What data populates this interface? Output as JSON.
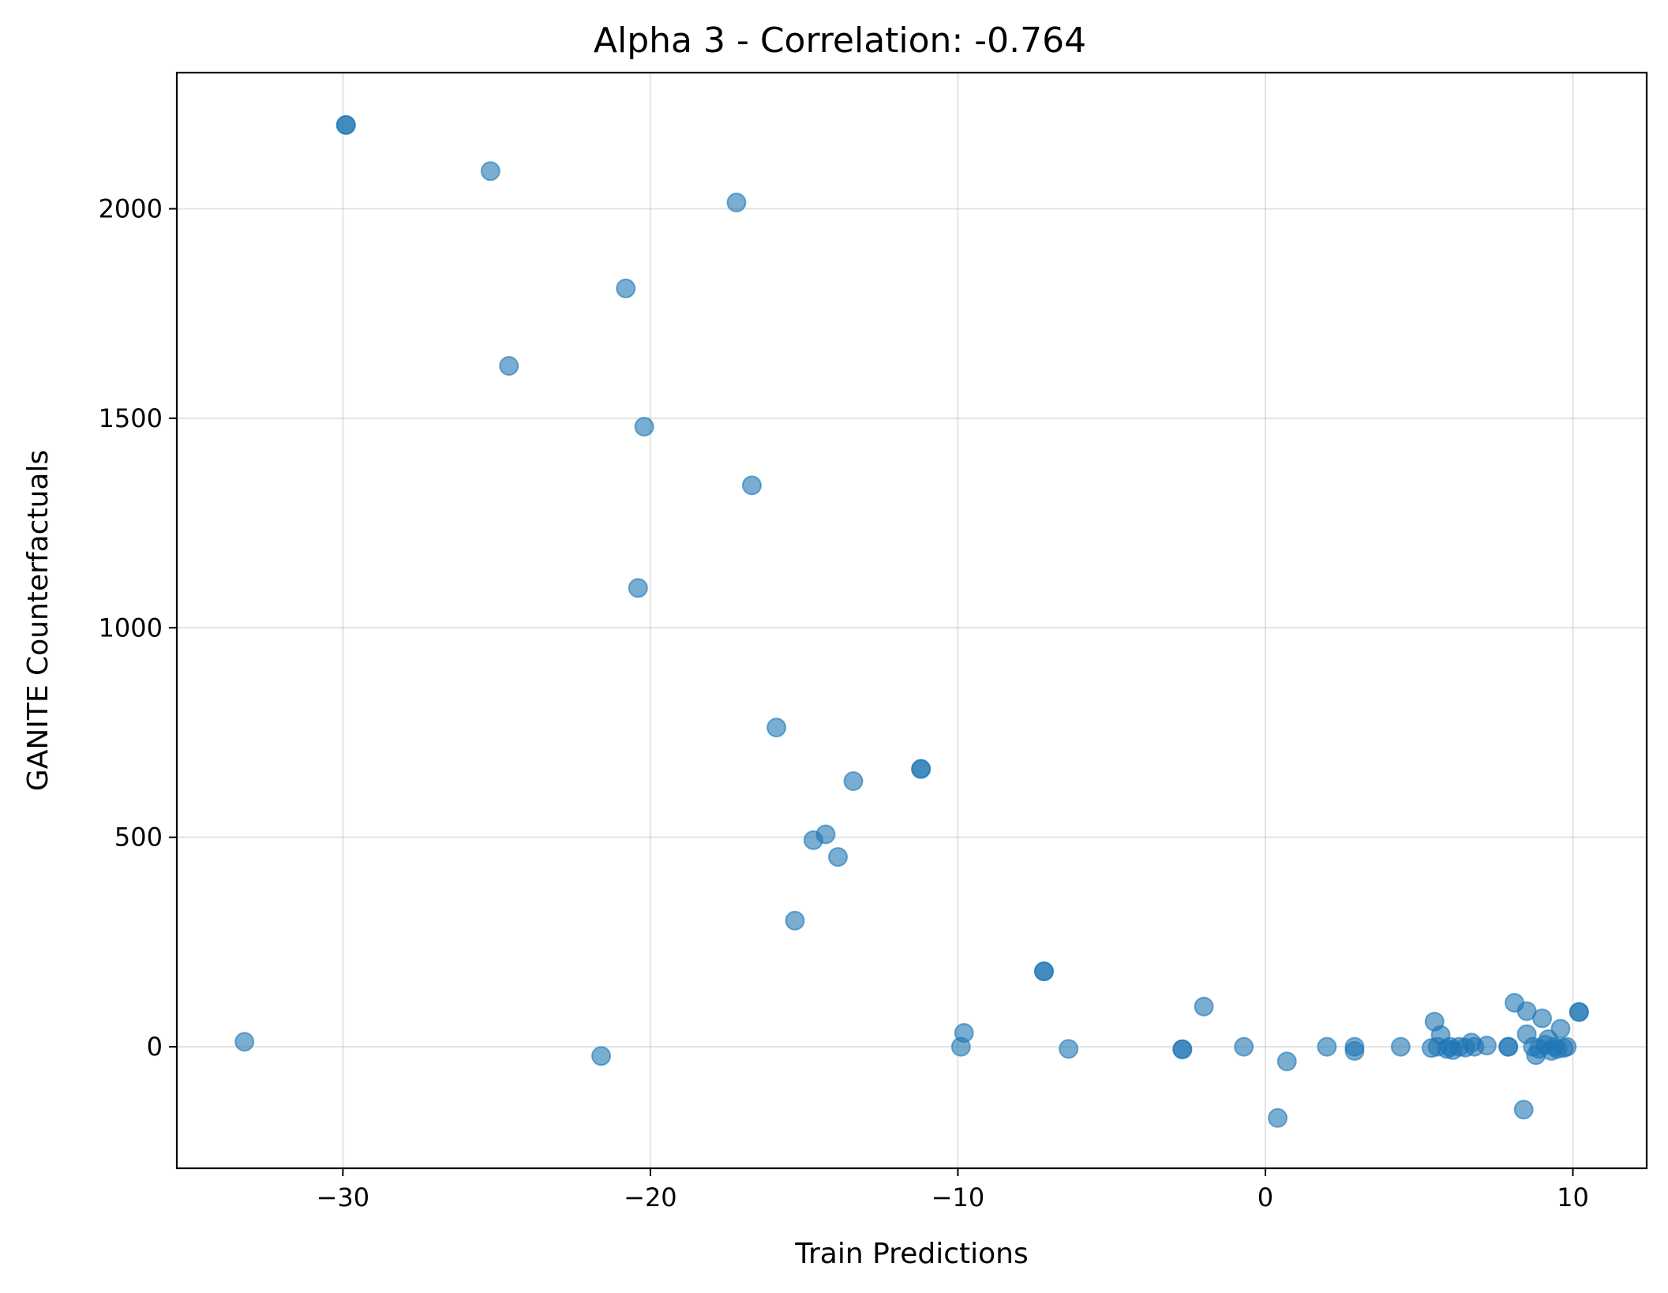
{
  "chart_data": {
    "type": "scatter",
    "title": "Alpha 3 - Correlation: -0.764",
    "xlabel": "Train Predictions",
    "ylabel": "GANITE Counterfactuals",
    "xlim": [
      -35.4,
      12.4
    ],
    "ylim": [
      -290,
      2325
    ],
    "xticks": [
      -30,
      -20,
      -10,
      0,
      10
    ],
    "xtick_labels": [
      "−30",
      "−20",
      "−10",
      "0",
      "10"
    ],
    "yticks": [
      0,
      500,
      1000,
      1500,
      2000
    ],
    "ytick_labels": [
      "0",
      "500",
      "1000",
      "1500",
      "2000"
    ],
    "grid": true,
    "marker_color": "#1f77b4",
    "points": [
      {
        "x": -29.9,
        "y": 2200
      },
      {
        "x": -29.9,
        "y": 2200
      },
      {
        "x": -25.2,
        "y": 2090
      },
      {
        "x": -17.2,
        "y": 2015
      },
      {
        "x": -20.8,
        "y": 1810
      },
      {
        "x": -24.6,
        "y": 1625
      },
      {
        "x": -20.2,
        "y": 1480
      },
      {
        "x": -16.7,
        "y": 1340
      },
      {
        "x": -20.4,
        "y": 1095
      },
      {
        "x": -15.9,
        "y": 762
      },
      {
        "x": -11.2,
        "y": 663
      },
      {
        "x": -11.2,
        "y": 663
      },
      {
        "x": -13.4,
        "y": 634
      },
      {
        "x": -14.3,
        "y": 507
      },
      {
        "x": -14.7,
        "y": 493
      },
      {
        "x": -13.9,
        "y": 453
      },
      {
        "x": -15.3,
        "y": 301
      },
      {
        "x": -7.2,
        "y": 180
      },
      {
        "x": -7.2,
        "y": 180
      },
      {
        "x": -33.2,
        "y": 12
      },
      {
        "x": -21.6,
        "y": -22
      },
      {
        "x": -9.8,
        "y": 33
      },
      {
        "x": -9.9,
        "y": 0
      },
      {
        "x": -6.4,
        "y": -5
      },
      {
        "x": -2.7,
        "y": -6
      },
      {
        "x": -2.7,
        "y": -6
      },
      {
        "x": -2.0,
        "y": 96
      },
      {
        "x": -0.7,
        "y": 0
      },
      {
        "x": 0.7,
        "y": -35
      },
      {
        "x": 0.4,
        "y": -170
      },
      {
        "x": 2.0,
        "y": 0
      },
      {
        "x": 2.9,
        "y": -10
      },
      {
        "x": 2.9,
        "y": 0
      },
      {
        "x": 4.4,
        "y": 0
      },
      {
        "x": 5.4,
        "y": -3
      },
      {
        "x": 5.5,
        "y": 60
      },
      {
        "x": 5.7,
        "y": 28
      },
      {
        "x": 5.6,
        "y": 0
      },
      {
        "x": 5.9,
        "y": -5
      },
      {
        "x": 6.0,
        "y": 0
      },
      {
        "x": 6.1,
        "y": -8
      },
      {
        "x": 6.3,
        "y": 0
      },
      {
        "x": 6.5,
        "y": -2
      },
      {
        "x": 6.7,
        "y": 10
      },
      {
        "x": 6.8,
        "y": 0
      },
      {
        "x": 7.2,
        "y": 3
      },
      {
        "x": 7.9,
        "y": 0
      },
      {
        "x": 7.9,
        "y": 0
      },
      {
        "x": 8.1,
        "y": 105
      },
      {
        "x": 8.4,
        "y": -150
      },
      {
        "x": 8.5,
        "y": 85
      },
      {
        "x": 8.5,
        "y": 30
      },
      {
        "x": 8.7,
        "y": 0
      },
      {
        "x": 8.8,
        "y": -20
      },
      {
        "x": 8.9,
        "y": -5
      },
      {
        "x": 9.0,
        "y": 68
      },
      {
        "x": 9.1,
        "y": 5
      },
      {
        "x": 9.2,
        "y": 18
      },
      {
        "x": 9.3,
        "y": -10
      },
      {
        "x": 9.4,
        "y": 0
      },
      {
        "x": 9.5,
        "y": -5
      },
      {
        "x": 9.6,
        "y": 43
      },
      {
        "x": 9.7,
        "y": -3
      },
      {
        "x": 9.8,
        "y": 0
      },
      {
        "x": 10.2,
        "y": 83
      },
      {
        "x": 10.2,
        "y": 83
      }
    ]
  }
}
